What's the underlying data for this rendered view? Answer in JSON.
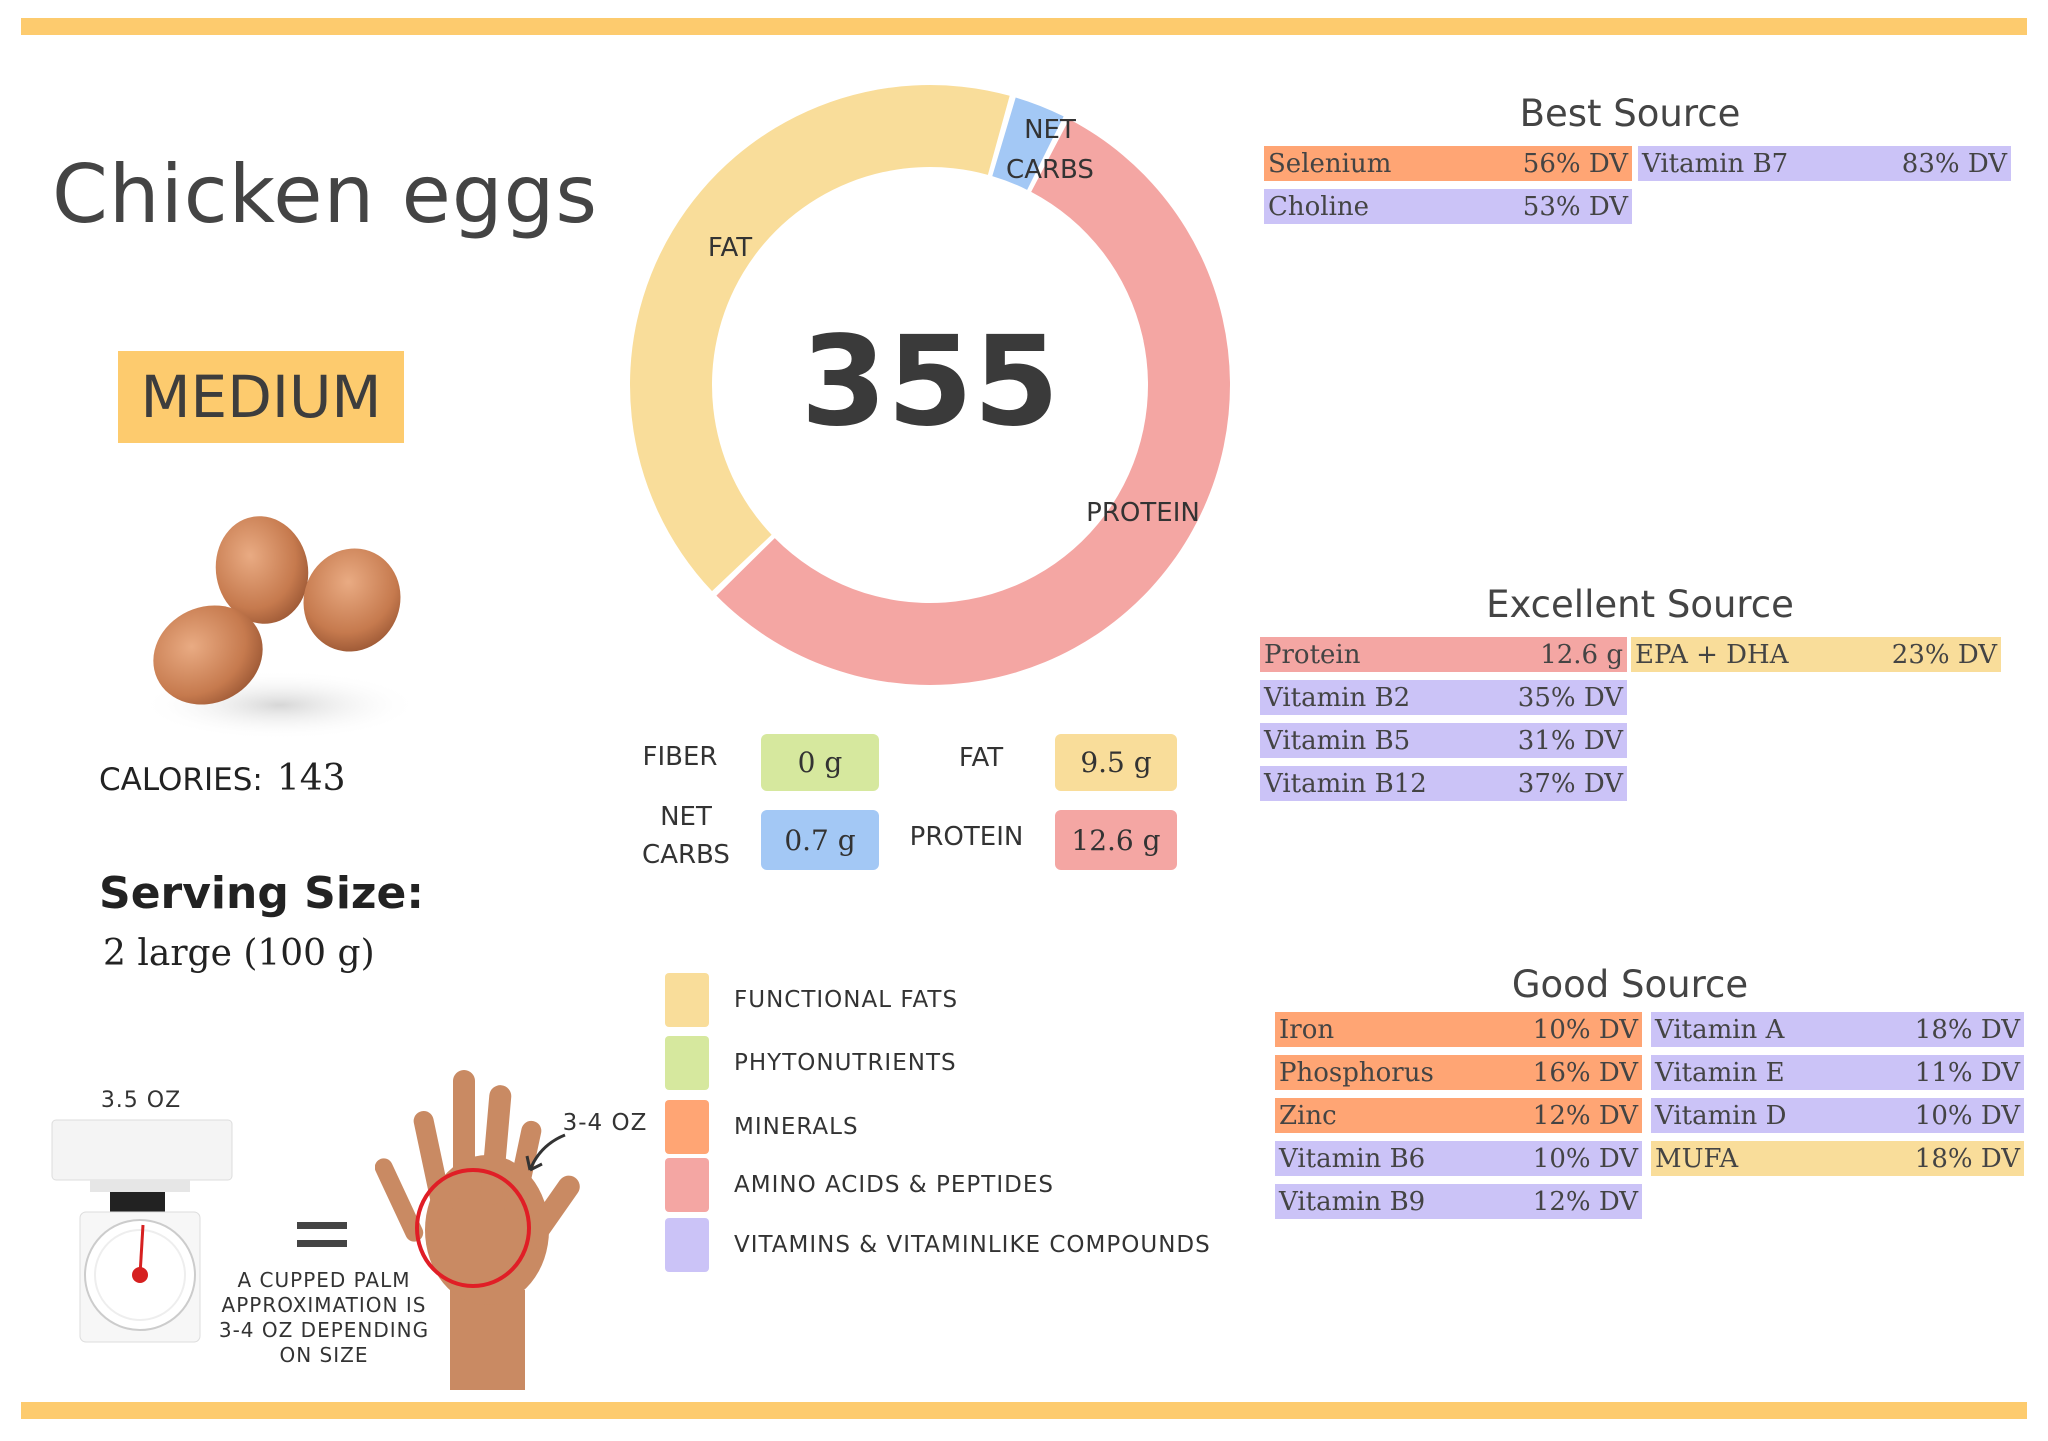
{
  "title": "Chicken eggs",
  "size_badge": "MEDIUM",
  "calories": {
    "label": "CALORIES:",
    "value": "143"
  },
  "serving": {
    "label": "Serving Size:",
    "value": "2 large (100 g)"
  },
  "colors": {
    "accent": "#fdcb6e",
    "fat": "#f9dd9a",
    "protein": "#f4a6a3",
    "net_carbs": "#a3c8f5",
    "fiber": "#d6e89e",
    "minerals": "#ffa574",
    "vitamins": "#cbc3f7"
  },
  "chart_data": {
    "type": "pie",
    "center_label": "355",
    "categories": [
      "NET CARBS",
      "PROTEIN",
      "FAT"
    ],
    "values": [
      0.7,
      12.6,
      9.5
    ],
    "colors": [
      "#a3c8f5",
      "#f4a6a3",
      "#f9dd9a"
    ]
  },
  "donut_labels": {
    "fat": "FAT",
    "net_carbs_1": "NET",
    "net_carbs_2": "CARBS",
    "protein": "PROTEIN"
  },
  "macros": {
    "fiber": {
      "label": "FIBER",
      "value": "0 g"
    },
    "fat": {
      "label": "FAT",
      "value": "9.5 g"
    },
    "net_carbs": {
      "label1": "NET",
      "label2": "CARBS",
      "value": "0.7 g"
    },
    "protein": {
      "label": "PROTEIN",
      "value": "12.6 g"
    }
  },
  "legend": [
    {
      "label": "FUNCTIONAL  FATS",
      "color": "#f9dd9a"
    },
    {
      "label": "PHYTONUTRIENTS",
      "color": "#d6e89e"
    },
    {
      "label": "MINERALS",
      "color": "#ffa574"
    },
    {
      "label": "AMINO ACIDS & PEPTIDES",
      "color": "#f4a6a3"
    },
    {
      "label": "VITAMINS & VITAMINLIKE COMPOUNDS",
      "color": "#cbc3f7"
    }
  ],
  "best_source": {
    "title": "Best Source",
    "left": [
      {
        "name": "Selenium",
        "value": "56% DV",
        "color": "#ffa574"
      },
      {
        "name": "Choline",
        "value": "53% DV",
        "color": "#cbc3f7"
      }
    ],
    "right": [
      {
        "name": "Vitamin B7",
        "value": "83% DV",
        "color": "#cbc3f7"
      }
    ]
  },
  "excellent_source": {
    "title": "Excellent Source",
    "left": [
      {
        "name": "Protein",
        "value": "12.6 g",
        "color": "#f4a6a3"
      },
      {
        "name": "Vitamin B2",
        "value": "35% DV",
        "color": "#cbc3f7"
      },
      {
        "name": "Vitamin B5",
        "value": "31% DV",
        "color": "#cbc3f7"
      },
      {
        "name": "Vitamin B12",
        "value": "37% DV",
        "color": "#cbc3f7"
      }
    ],
    "right": [
      {
        "name": "EPA + DHA",
        "value": "23% DV",
        "color": "#f9dd9a"
      }
    ]
  },
  "good_source": {
    "title": "Good Source",
    "left": [
      {
        "name": "Iron",
        "value": "10% DV",
        "color": "#ffa574"
      },
      {
        "name": "Phosphorus",
        "value": "16% DV",
        "color": "#ffa574"
      },
      {
        "name": "Zinc",
        "value": "12% DV",
        "color": "#ffa574"
      },
      {
        "name": "Vitamin B6",
        "value": "10% DV",
        "color": "#cbc3f7"
      },
      {
        "name": "Vitamin B9",
        "value": "12% DV",
        "color": "#cbc3f7"
      }
    ],
    "right": [
      {
        "name": "Vitamin A",
        "value": "18% DV",
        "color": "#cbc3f7"
      },
      {
        "name": "Vitamin E",
        "value": "11% DV",
        "color": "#cbc3f7"
      },
      {
        "name": "Vitamin D",
        "value": "10% DV",
        "color": "#cbc3f7"
      },
      {
        "name": "MUFA",
        "value": "18% DV",
        "color": "#f9dd9a"
      }
    ]
  },
  "portion": {
    "scale_label": "3.5 OZ",
    "hand_label": "3-4 OZ",
    "caption": [
      "A CUPPED PALM",
      "APPROXIMATION IS",
      "3-4 OZ DEPENDING",
      "ON SIZE"
    ]
  }
}
